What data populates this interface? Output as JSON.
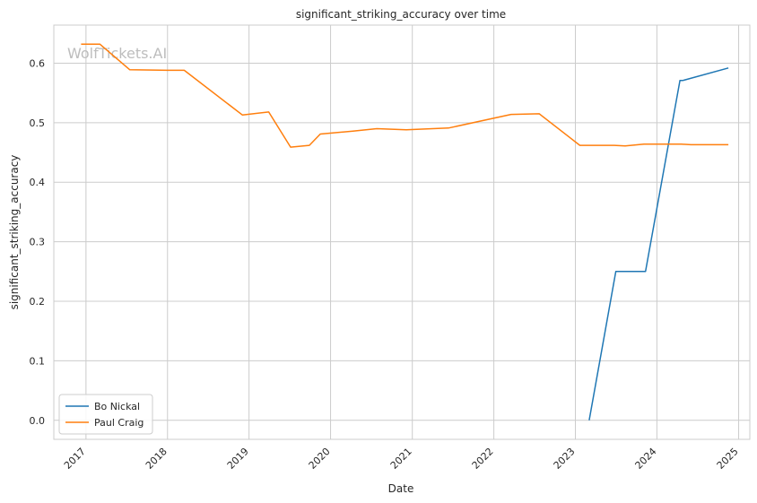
{
  "chart_data": {
    "type": "line",
    "title": "significant_striking_accuracy over time",
    "xlabel": "Date",
    "ylabel": "significant_striking_accuracy",
    "watermark": "WolfTickets.AI",
    "x_ticks": [
      "2017",
      "2018",
      "2019",
      "2020",
      "2021",
      "2022",
      "2023",
      "2024",
      "2025"
    ],
    "y_ticks": [
      "0.0",
      "0.1",
      "0.2",
      "0.3",
      "0.4",
      "0.5",
      "0.6"
    ],
    "xlim": [
      "2016-08-10",
      "2025-02-20"
    ],
    "ylim": [
      -0.032,
      0.664
    ],
    "grid": true,
    "legend_position": "lower-left",
    "series": [
      {
        "name": "Bo Nickal",
        "color": "#1f77b4",
        "points": [
          [
            "2023-03-04",
            0.0
          ],
          [
            "2023-07-01",
            0.25
          ],
          [
            "2023-11-11",
            0.25
          ],
          [
            "2024-04-13",
            0.571
          ],
          [
            "2024-04-27",
            0.571
          ],
          [
            "2024-11-16",
            0.592
          ]
        ]
      },
      {
        "name": "Paul Craig",
        "color": "#ff7f0e",
        "points": [
          [
            "2016-12-10",
            0.632
          ],
          [
            "2017-03-04",
            0.632
          ],
          [
            "2017-07-16",
            0.589
          ],
          [
            "2017-12-30",
            0.588
          ],
          [
            "2018-03-17",
            0.588
          ],
          [
            "2018-12-02",
            0.513
          ],
          [
            "2019-03-30",
            0.518
          ],
          [
            "2019-07-06",
            0.459
          ],
          [
            "2019-09-28",
            0.462
          ],
          [
            "2019-11-16",
            0.481
          ],
          [
            "2020-04-10",
            0.486
          ],
          [
            "2020-07-26",
            0.49
          ],
          [
            "2020-12-05",
            0.488
          ],
          [
            "2021-06-12",
            0.491
          ],
          [
            "2022-03-19",
            0.514
          ],
          [
            "2022-07-23",
            0.515
          ],
          [
            "2023-01-21",
            0.462
          ],
          [
            "2023-06-24",
            0.462
          ],
          [
            "2023-08-12",
            0.461
          ],
          [
            "2023-11-04",
            0.464
          ],
          [
            "2024-04-20",
            0.464
          ],
          [
            "2024-06-01",
            0.463
          ],
          [
            "2024-11-16",
            0.463
          ]
        ]
      }
    ]
  }
}
